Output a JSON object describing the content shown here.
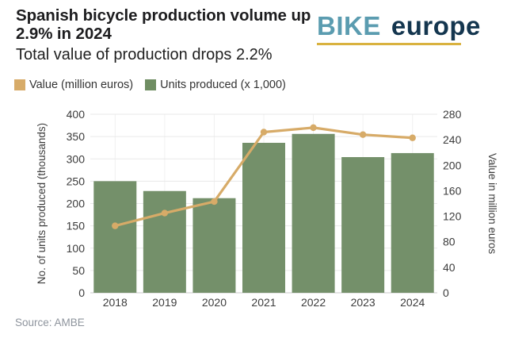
{
  "header": {
    "title": "Spanish bicycle production volume up 2.9% in 2024",
    "subtitle": "Total value of production drops 2.2%",
    "logo": {
      "part1": "BIKE",
      "part2": "europe"
    }
  },
  "legend": [
    {
      "label": "Value (million euros)",
      "color": "#d7ab68"
    },
    {
      "label": "Units produced (x 1,000)",
      "color": "#6f8d62"
    }
  ],
  "source": "Source: AMBE",
  "colors": {
    "bar": "#74906a",
    "line": "#d7ab68",
    "grid": "#e9e9e9",
    "grid_vertical": "#f0f0f0",
    "zero_line": "#c9c9c9",
    "logo_teal": "#5b9cb0",
    "logo_navy": "#14364f",
    "logo_gold": "#d9b23f"
  },
  "chart_data": {
    "type": "bar",
    "title": "Spanish bicycle production volume up 2.9% in 2024",
    "subtitle": "Total value of production drops 2.2%",
    "categories": [
      "2018",
      "2019",
      "2020",
      "2021",
      "2022",
      "2023",
      "2024"
    ],
    "series": [
      {
        "name": "Units produced (x 1,000)",
        "type": "bar",
        "axis": "left",
        "color": "#74906a",
        "values": [
          250,
          228,
          212,
          336,
          356,
          304,
          313
        ]
      },
      {
        "name": "Value (million euros)",
        "type": "line",
        "axis": "right",
        "color": "#d7ab68",
        "values": [
          105,
          125,
          143,
          252,
          259,
          248,
          243
        ]
      }
    ],
    "left_axis": {
      "label": "No. of units produced (thousands)",
      "min": 0,
      "max": 400,
      "ticks": [
        0,
        50,
        100,
        150,
        200,
        250,
        300,
        350,
        400
      ]
    },
    "right_axis": {
      "label": "Value in million euros",
      "min": 0,
      "max": 280,
      "ticks": [
        0,
        40,
        80,
        120,
        160,
        200,
        240,
        280
      ]
    },
    "grid": true,
    "legend_position": "top"
  }
}
